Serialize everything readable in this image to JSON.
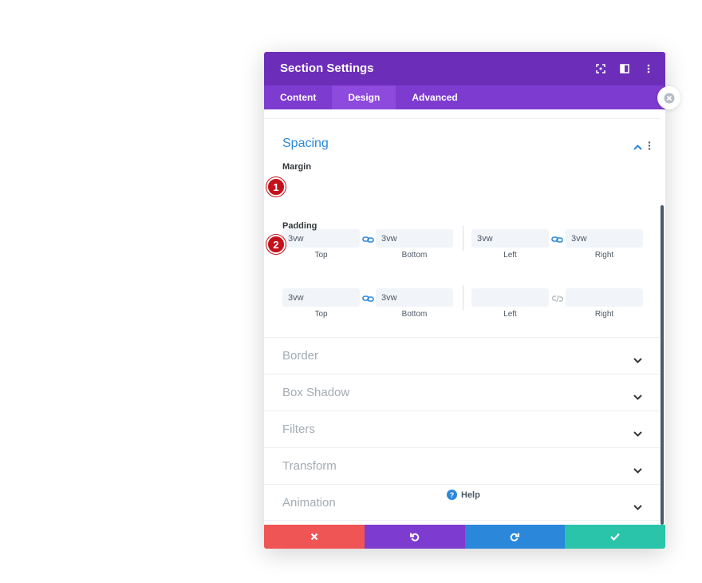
{
  "modal": {
    "title": "Section Settings",
    "header_icons": [
      "expand-icon",
      "split-view-icon",
      "kebab-menu-icon"
    ]
  },
  "tabs": [
    {
      "label": "Content",
      "active": false
    },
    {
      "label": "Design",
      "active": true
    },
    {
      "label": "Advanced",
      "active": false
    }
  ],
  "spacing": {
    "title": "Spacing",
    "margin": {
      "label": "Margin",
      "badge": "1",
      "top": "3vw",
      "bottom": "3vw",
      "left": "3vw",
      "right": "3vw",
      "labels": {
        "top": "Top",
        "bottom": "Bottom",
        "left": "Left",
        "right": "Right"
      }
    },
    "padding": {
      "label": "Padding",
      "badge": "2",
      "top": "3vw",
      "bottom": "3vw",
      "left": "",
      "right": "",
      "labels": {
        "top": "Top",
        "bottom": "Bottom",
        "left": "Left",
        "right": "Right"
      }
    }
  },
  "sections": [
    {
      "label": "Border"
    },
    {
      "label": "Box Shadow"
    },
    {
      "label": "Filters"
    },
    {
      "label": "Transform"
    },
    {
      "label": "Animation"
    }
  ],
  "help": {
    "label": "Help"
  },
  "colors": {
    "header": "#6c2eb9",
    "tabs": "#7d3bcf",
    "accent_blue": "#2b87da",
    "cancel": "#ef5555",
    "undo": "#7e3bd0",
    "redo": "#2b87da",
    "save": "#29c4a9",
    "badge": "#c4111b"
  }
}
